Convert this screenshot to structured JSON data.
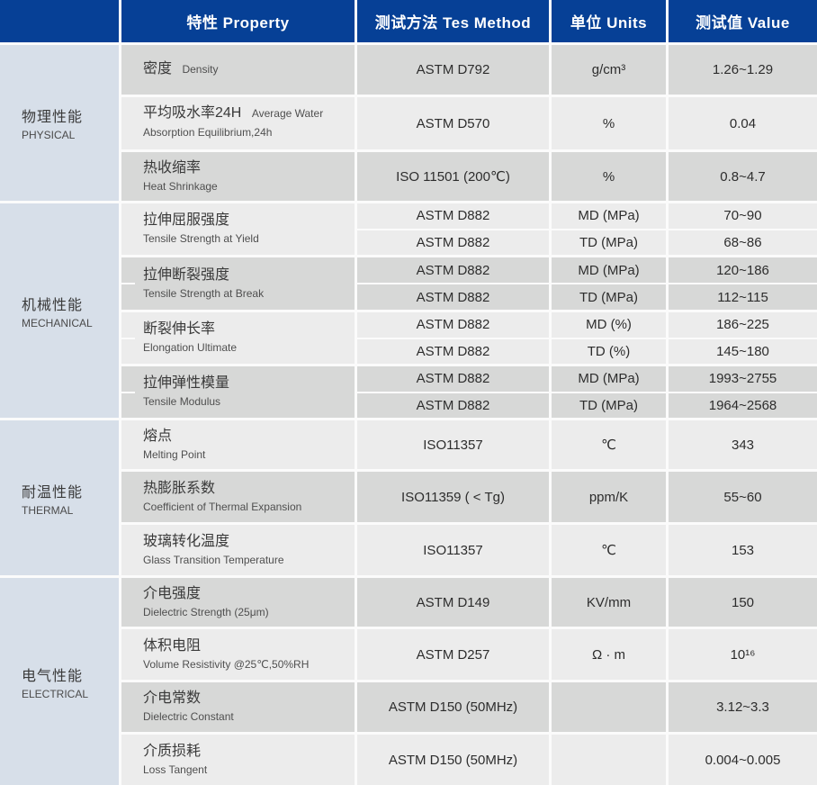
{
  "header": {
    "property": "特性 Property",
    "method": "测试方法 Tes Method",
    "units": "单位 Units",
    "value": "测试值 Value"
  },
  "colors": {
    "header_bg": "#064096",
    "header_text": "#ffffff",
    "category_bg": "#d7dfe9",
    "row_dark": "#d7d8d7",
    "row_light": "#ececec",
    "divider": "#fbfbfb"
  },
  "sections": [
    {
      "id": "physical",
      "category_zh": "物理性能",
      "category_en": "PHYSICAL",
      "rows": [
        {
          "zh": "密度",
          "en": "Density",
          "method": "ASTM D792",
          "units": "g/cm³",
          "value": "1.26~1.29"
        },
        {
          "zh": "平均吸水率24H",
          "en": "Average Water Absorption Equilibrium,24h",
          "method": "ASTM D570",
          "units": "%",
          "value": "0.04"
        },
        {
          "zh": "热收缩率",
          "en": "Heat Shrinkage",
          "method": "ISO 11501 (200℃)",
          "units": "%",
          "value": "0.8~4.7"
        }
      ]
    },
    {
      "id": "mechanical",
      "category_zh": "机械性能",
      "category_en": "MECHANICAL",
      "groups": [
        {
          "zh": "拉伸屈服强度",
          "en": "Tensile Strength at Yield",
          "sub": [
            {
              "method": "ASTM D882",
              "units": "MD (MPa)",
              "value": "70~90"
            },
            {
              "method": "ASTM D882",
              "units": "TD (MPa)",
              "value": "68~86"
            }
          ]
        },
        {
          "zh": "拉伸断裂强度",
          "en": "Tensile Strength at Break",
          "sub": [
            {
              "method": "ASTM D882",
              "units": "MD (MPa)",
              "value": "120~186"
            },
            {
              "method": "ASTM D882",
              "units": "TD (MPa)",
              "value": "112~115"
            }
          ]
        },
        {
          "zh": "断裂伸长率",
          "en": "Elongation Ultimate",
          "sub": [
            {
              "method": "ASTM D882",
              "units": "MD (%)",
              "value": "186~225"
            },
            {
              "method": "ASTM D882",
              "units": "TD (%)",
              "value": "145~180"
            }
          ]
        },
        {
          "zh": "拉伸弹性模量",
          "en": "Tensile Modulus",
          "sub": [
            {
              "method": "ASTM D882",
              "units": "MD (MPa)",
              "value": "1993~2755"
            },
            {
              "method": "ASTM D882",
              "units": "TD (MPa)",
              "value": "1964~2568"
            }
          ]
        }
      ]
    },
    {
      "id": "thermal",
      "category_zh": "耐温性能",
      "category_en": "THERMAL",
      "rows": [
        {
          "zh": "熔点",
          "en": "Melting Point",
          "method": "ISO11357",
          "units": "℃",
          "value": "343"
        },
        {
          "zh": "热膨胀系数",
          "en": "Coefficient of Thermal Expansion",
          "method": "ISO11359 ( < Tg)",
          "units": "ppm/K",
          "value": "55~60"
        },
        {
          "zh": "玻璃转化温度",
          "en": "Glass Transition Temperature",
          "method": "ISO11357",
          "units": "℃",
          "value": "153"
        }
      ]
    },
    {
      "id": "electrical",
      "category_zh": "电气性能",
      "category_en": "ELECTRICAL",
      "rows": [
        {
          "zh": "介电强度",
          "en": "Dielectric Strength (25μm)",
          "method": "ASTM D149",
          "units": "KV/mm",
          "value": "150"
        },
        {
          "zh": "体积电阻",
          "en": "Volume Resistivity @25℃,50%RH",
          "method": "ASTM D257",
          "units": "Ω · m",
          "value": "10¹⁶"
        },
        {
          "zh": "介电常数",
          "en": "Dielectric Constant",
          "method": "ASTM D150 (50MHz)",
          "units": "",
          "value": "3.12~3.3"
        },
        {
          "zh": "介质损耗",
          "en": "Loss Tangent",
          "method": "ASTM D150 (50MHz)",
          "units": "",
          "value": "0.004~0.005"
        }
      ]
    }
  ]
}
